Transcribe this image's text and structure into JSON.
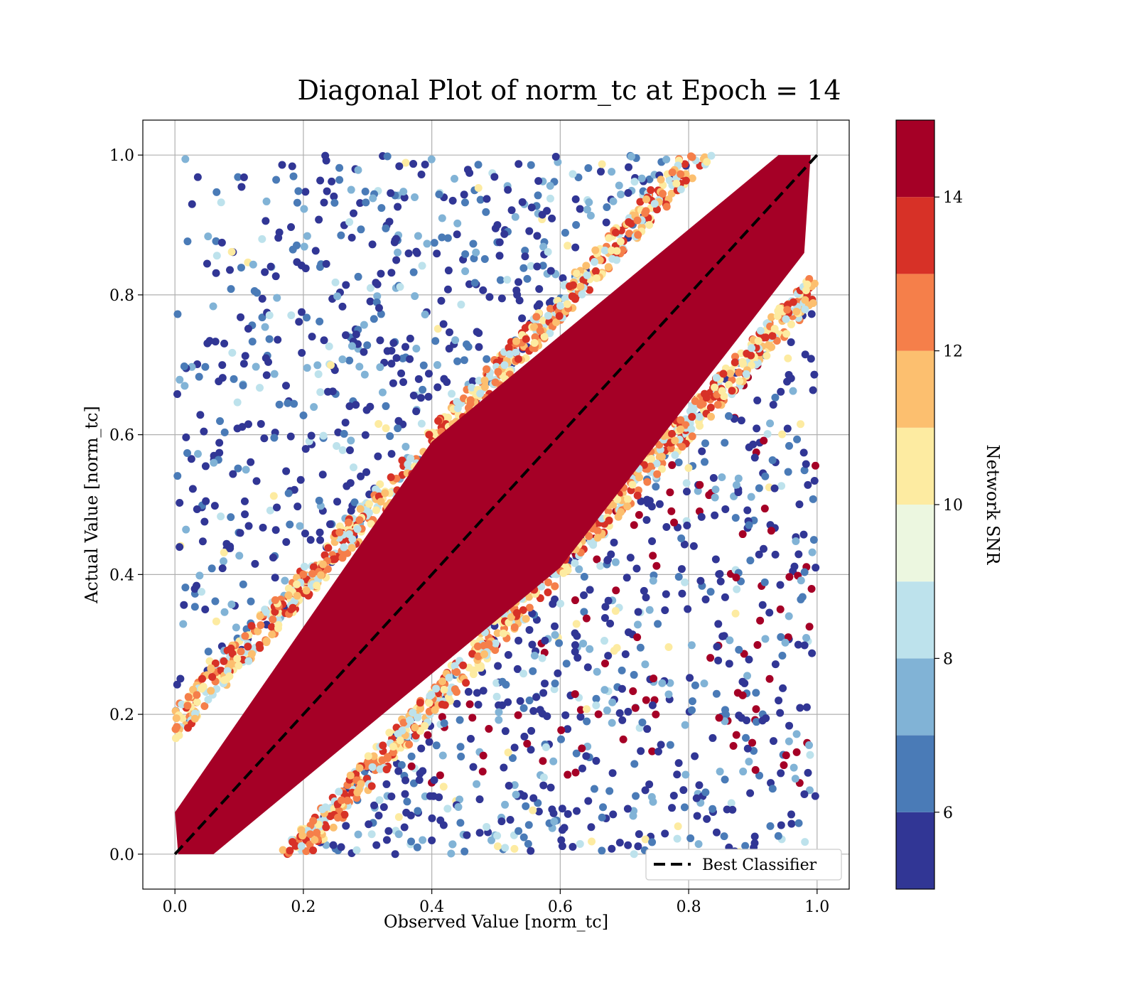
{
  "chart_data": {
    "type": "scatter",
    "title": "Diagonal Plot of norm_tc at Epoch = 14",
    "xlabel": "Observed Value [norm_tc]",
    "ylabel": "Actual Value [norm_tc]",
    "xlim": [
      -0.05,
      1.05
    ],
    "ylim": [
      -0.05,
      1.05
    ],
    "xticks": [
      0.0,
      0.2,
      0.4,
      0.6,
      0.8,
      1.0
    ],
    "yticks": [
      0.0,
      0.2,
      0.4,
      0.6,
      0.8,
      1.0
    ],
    "xtick_labels": [
      "0.0",
      "0.2",
      "0.4",
      "0.6",
      "0.8",
      "1.0"
    ],
    "ytick_labels": [
      "0.0",
      "0.2",
      "0.4",
      "0.6",
      "0.8",
      "1.0"
    ],
    "grid": true,
    "colorbar": {
      "label": "Network SNR",
      "range": [
        5,
        15
      ],
      "ticks": [
        6,
        8,
        10,
        12,
        14
      ],
      "tick_labels": [
        "6",
        "8",
        "10",
        "12",
        "14"
      ],
      "bins": [
        {
          "from": 5,
          "to": 6,
          "color": "#313695"
        },
        {
          "from": 6,
          "to": 7,
          "color": "#4a7bb7"
        },
        {
          "from": 7,
          "to": 8,
          "color": "#81b3d6"
        },
        {
          "from": 8,
          "to": 9,
          "color": "#bde2ec"
        },
        {
          "from": 9,
          "to": 10,
          "color": "#ecf7e0"
        },
        {
          "from": 10,
          "to": 11,
          "color": "#fdeba1"
        },
        {
          "from": 11,
          "to": 12,
          "color": "#fcbf6f"
        },
        {
          "from": 12,
          "to": 13,
          "color": "#f57f4a"
        },
        {
          "from": 13,
          "to": 14,
          "color": "#d73127"
        },
        {
          "from": 14,
          "to": 15,
          "color": "#a50026"
        }
      ]
    },
    "reference_line": {
      "name": "Best Classifier",
      "x": [
        0.0,
        1.0
      ],
      "y": [
        0.0,
        1.0
      ],
      "style": "dashed",
      "color": "#000000"
    },
    "legend": {
      "entries": [
        "Best Classifier"
      ],
      "placement": "lower-right"
    },
    "scatter_description": {
      "x_range": [
        0.0,
        1.0
      ],
      "y_range": [
        0.0,
        1.0
      ],
      "high_snr_band_halfwidth": 0.2,
      "high_snr_color": "#a50026",
      "low_snr_colors": [
        "#313695",
        "#4a7bb7",
        "#81b3d6",
        "#bde2ec",
        "#fdeba1"
      ]
    }
  }
}
